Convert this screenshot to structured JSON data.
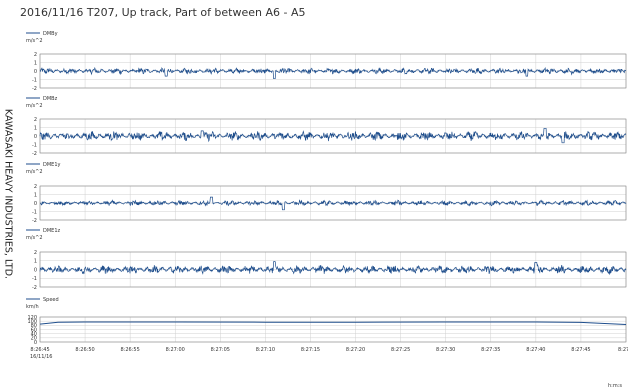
{
  "title": "2016/11/16 T207, Up track, Part of between A6 - A5",
  "side_text": "KAWASAKI HEAVY INDUSTRIES, LTD.",
  "x_unit": "h:m:s",
  "date_label": "16/11/16",
  "line_color": "#1f4e8c",
  "chart_data": [
    {
      "type": "line",
      "series_name": "DMBy",
      "ylabel": "m/s^2",
      "ylim": [
        -2,
        2
      ],
      "yticks": [
        2,
        1,
        0,
        -1,
        -2
      ],
      "noise_amplitude": 0.3,
      "grid": true,
      "spikes": [
        {
          "x": "8:26:59",
          "y": -0.6
        },
        {
          "x": "8:27:11",
          "y": -0.9
        },
        {
          "x": "8:27:39",
          "y": -0.6
        }
      ]
    },
    {
      "type": "line",
      "series_name": "DMBz",
      "ylabel": "m/s^2",
      "ylim": [
        -2,
        2
      ],
      "yticks": [
        2,
        1,
        0,
        -1,
        -2
      ],
      "noise_amplitude": 0.45,
      "grid": true,
      "spikes": [
        {
          "x": "8:27:03",
          "y": 0.6
        },
        {
          "x": "8:27:41",
          "y": 0.9
        },
        {
          "x": "8:27:43",
          "y": -0.8
        }
      ]
    },
    {
      "type": "line",
      "series_name": "DME1y",
      "ylabel": "m/s^2",
      "ylim": [
        -2,
        2
      ],
      "yticks": [
        2,
        1,
        0,
        -1,
        -2
      ],
      "noise_amplitude": 0.25,
      "grid": true,
      "spikes": [
        {
          "x": "8:27:04",
          "y": -1.1
        },
        {
          "x": "8:27:04",
          "y": 0.7
        },
        {
          "x": "8:27:12",
          "y": -0.8
        }
      ]
    },
    {
      "type": "line",
      "series_name": "DME1z",
      "ylabel": "m/s^2",
      "ylim": [
        -2,
        2
      ],
      "yticks": [
        2,
        1,
        0,
        -1,
        -2
      ],
      "noise_amplitude": 0.4,
      "grid": true,
      "spikes": [
        {
          "x": "8:27:11",
          "y": -1.4
        },
        {
          "x": "8:27:11",
          "y": 0.9
        },
        {
          "x": "8:27:40",
          "y": 0.8
        }
      ]
    },
    {
      "type": "line",
      "series_name": "Speed",
      "ylabel": "km/h",
      "ylim": [
        0,
        120
      ],
      "yticks": [
        120,
        100,
        80,
        60,
        40,
        20,
        0
      ],
      "grid": true,
      "x": [
        "8:26:45",
        "8:26:47",
        "8:26:50",
        "8:27:00",
        "8:27:10",
        "8:27:20",
        "8:27:30",
        "8:27:40",
        "8:27:45",
        "8:27:50"
      ],
      "values": [
        86,
        95,
        96,
        96,
        95,
        95,
        96,
        96,
        94,
        84
      ]
    }
  ],
  "x_axis": {
    "ticks": [
      "8:26:45",
      "8:26:50",
      "8:26:55",
      "8:27:00",
      "8:27:05",
      "8:27:10",
      "8:27:15",
      "8:27:20",
      "8:27:25",
      "8:27:30",
      "8:27:35",
      "8:27:40",
      "8:27:45",
      "8:27:5"
    ]
  }
}
